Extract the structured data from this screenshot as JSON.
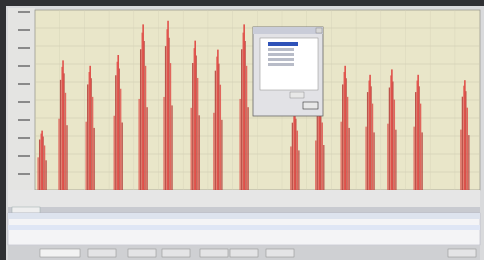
{
  "plot": {
    "peak_x": [
      1.6,
      6.3,
      12.4,
      18.7,
      24.3,
      29.9,
      36.0,
      41.1,
      47.0,
      58.4,
      64.0,
      69.7,
      75.3,
      80.2,
      86.1,
      96.6
    ],
    "peak_height": [
      33,
      72,
      69,
      75,
      92,
      94,
      83,
      78,
      92,
      44,
      50,
      69,
      64,
      67,
      64,
      61
    ],
    "color": "#e0504a"
  }
}
